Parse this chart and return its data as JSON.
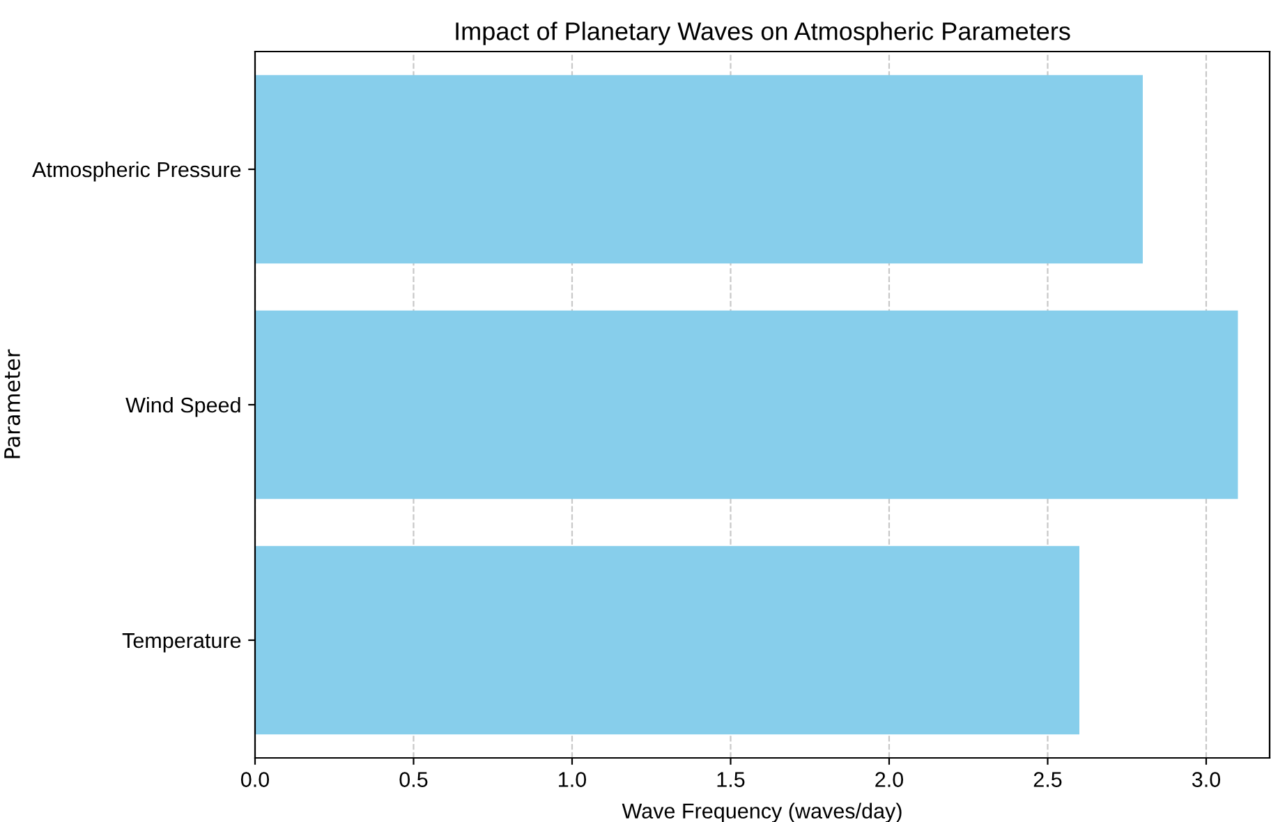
{
  "chart_data": {
    "type": "bar",
    "orientation": "horizontal",
    "title": "Impact of Planetary Waves on Atmospheric Parameters",
    "xlabel": "Wave Frequency (waves/day)",
    "ylabel": "Parameter",
    "categories": [
      "Atmospheric Pressure",
      "Wind Speed",
      "Temperature"
    ],
    "values": [
      2.8,
      3.1,
      2.6
    ],
    "color": "#87ceeb",
    "xlim": [
      0,
      3.2
    ],
    "xticks": [
      {
        "value": 0,
        "label": "0.0"
      },
      0.5,
      {
        "value": 1,
        "label": "1.0"
      },
      1.5,
      {
        "value": 2,
        "label": "2.0"
      },
      2.5,
      {
        "value": 3,
        "label": "3.0"
      }
    ],
    "grid": "x"
  }
}
